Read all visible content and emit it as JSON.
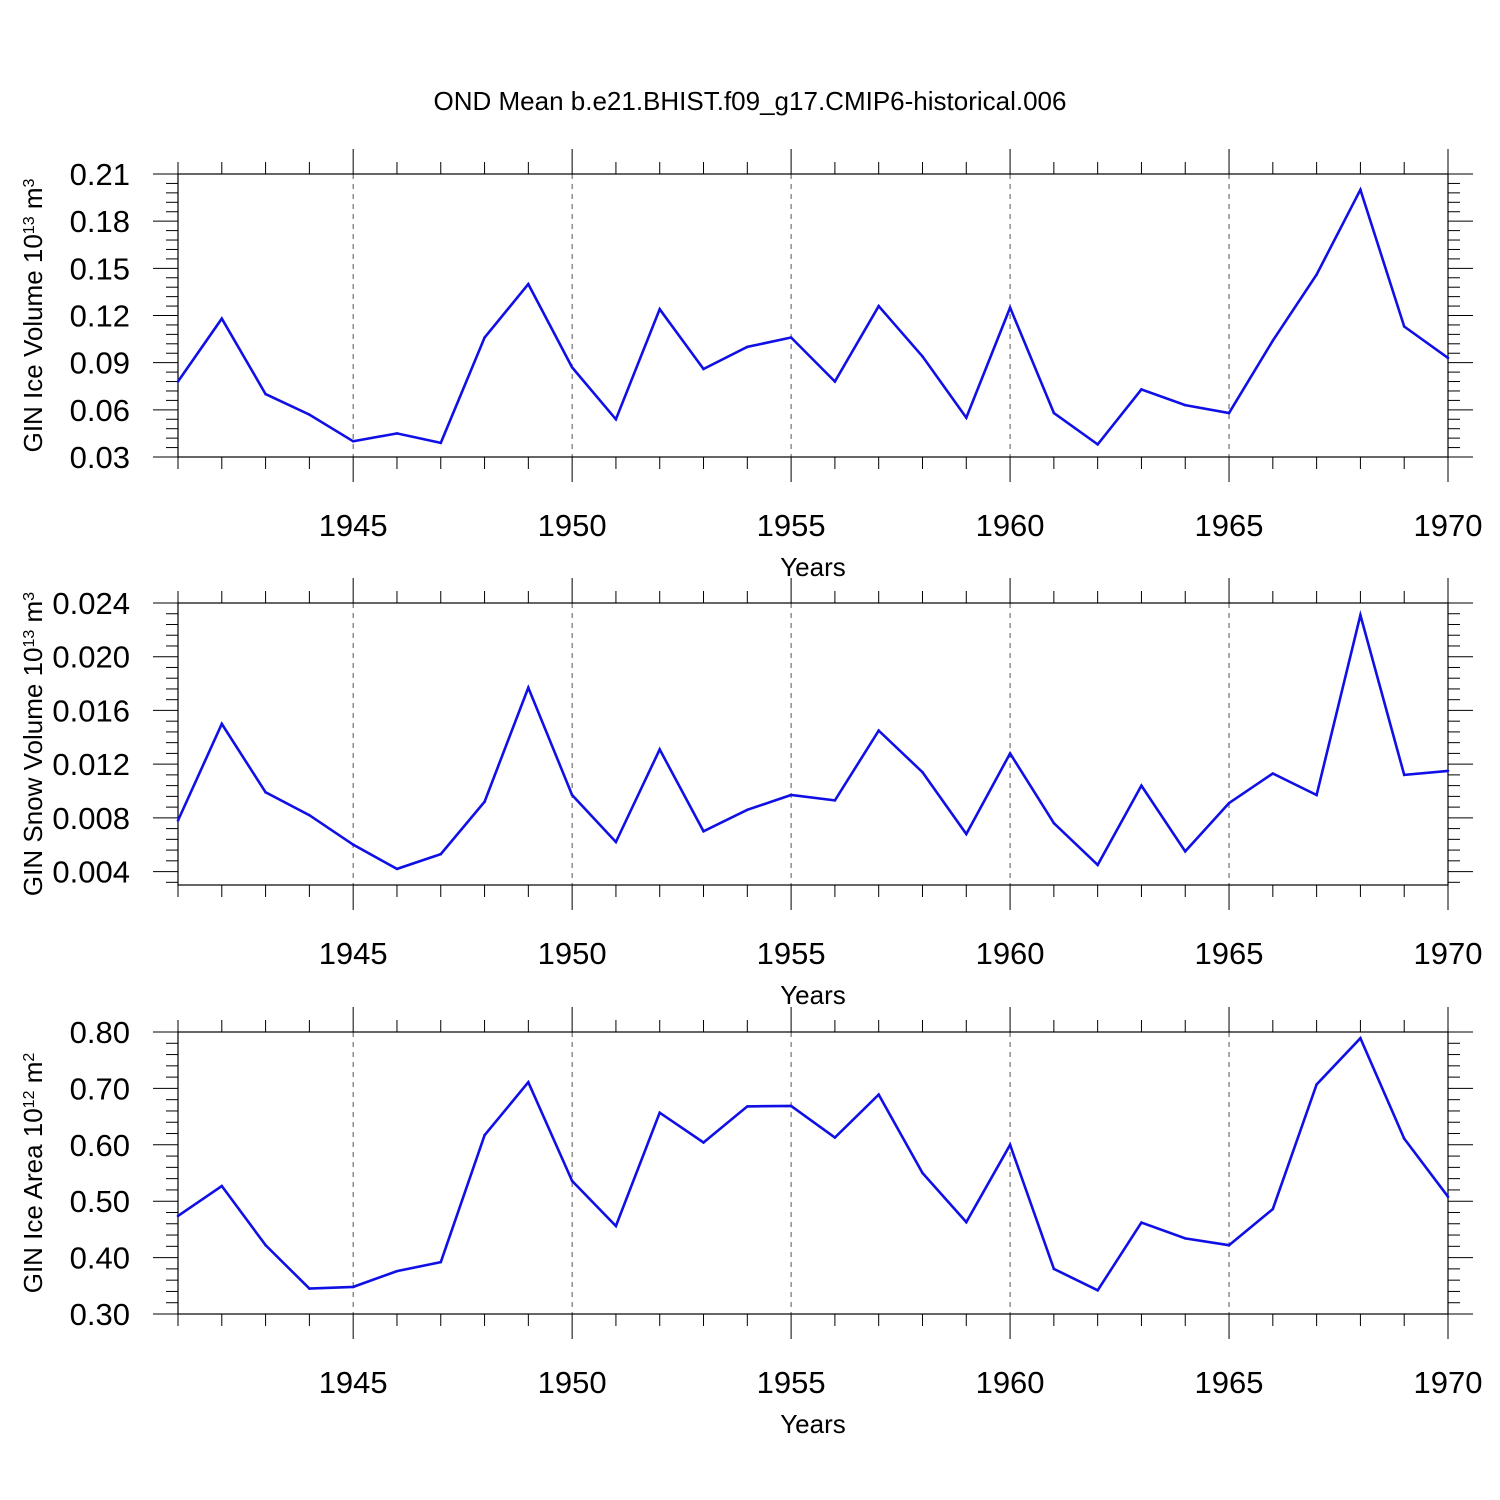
{
  "title": "OND Mean b.e21.BHIST.f09_g17.CMIP6-historical.006",
  "line_color": "#1010e6",
  "chart_data": [
    {
      "type": "line",
      "ylabel_prefix": "GIN Ice Volume 10",
      "ylabel_exp": "13",
      "ylabel_unit": " m",
      "ylabel_unit_exp": "3",
      "xlabel": "Years",
      "xlim": [
        1941,
        1970
      ],
      "ylim": [
        0.03,
        0.21
      ],
      "yticks": [
        "0.03",
        "0.06",
        "0.09",
        "0.12",
        "0.15",
        "0.18",
        "0.21"
      ],
      "xticks": [
        "1945",
        "1950",
        "1955",
        "1960",
        "1965",
        "1970"
      ],
      "x": [
        1941,
        1942,
        1943,
        1944,
        1945,
        1946,
        1947,
        1948,
        1949,
        1950,
        1951,
        1952,
        1953,
        1954,
        1955,
        1956,
        1957,
        1958,
        1959,
        1960,
        1961,
        1962,
        1963,
        1964,
        1965,
        1966,
        1967,
        1968,
        1969,
        1970
      ],
      "values": [
        0.078,
        0.118,
        0.07,
        0.057,
        0.04,
        0.045,
        0.039,
        0.106,
        0.14,
        0.087,
        0.054,
        0.124,
        0.086,
        0.1,
        0.106,
        0.078,
        0.126,
        0.094,
        0.055,
        0.125,
        0.058,
        0.038,
        0.073,
        0.063,
        0.058,
        0.104,
        0.146,
        0.2,
        0.113,
        0.093
      ]
    },
    {
      "type": "line",
      "ylabel_prefix": "GIN Snow Volume 10",
      "ylabel_exp": "13",
      "ylabel_unit": " m",
      "ylabel_unit_exp": "3",
      "xlabel": "Years",
      "xlim": [
        1941,
        1970
      ],
      "ylim": [
        0.003,
        0.024
      ],
      "yticks": [
        "0.004",
        "0.008",
        "0.012",
        "0.016",
        "0.020",
        "0.024"
      ],
      "xticks": [
        "1945",
        "1950",
        "1955",
        "1960",
        "1965",
        "1970"
      ],
      "x": [
        1941,
        1942,
        1943,
        1944,
        1945,
        1946,
        1947,
        1948,
        1949,
        1950,
        1951,
        1952,
        1953,
        1954,
        1955,
        1956,
        1957,
        1958,
        1959,
        1960,
        1961,
        1962,
        1963,
        1964,
        1965,
        1966,
        1967,
        1968,
        1969,
        1970
      ],
      "values": [
        0.0078,
        0.015,
        0.0099,
        0.0082,
        0.006,
        0.0042,
        0.0053,
        0.0092,
        0.0177,
        0.0097,
        0.0062,
        0.0131,
        0.007,
        0.0086,
        0.0097,
        0.0093,
        0.0145,
        0.0114,
        0.0068,
        0.0128,
        0.0076,
        0.0045,
        0.0104,
        0.0055,
        0.0091,
        0.0113,
        0.0097,
        0.0231,
        0.0112,
        0.0115
      ]
    },
    {
      "type": "line",
      "ylabel_prefix": "GIN Ice Area 10",
      "ylabel_exp": "12",
      "ylabel_unit": " m",
      "ylabel_unit_exp": "2",
      "xlabel": "Years",
      "xlim": [
        1941,
        1970
      ],
      "ylim": [
        0.3,
        0.8
      ],
      "yticks": [
        "0.30",
        "0.40",
        "0.50",
        "0.60",
        "0.70",
        "0.80"
      ],
      "xticks": [
        "1945",
        "1950",
        "1955",
        "1960",
        "1965",
        "1970"
      ],
      "x": [
        1941,
        1942,
        1943,
        1944,
        1945,
        1946,
        1947,
        1948,
        1949,
        1950,
        1951,
        1952,
        1953,
        1954,
        1955,
        1956,
        1957,
        1958,
        1959,
        1960,
        1961,
        1962,
        1963,
        1964,
        1965,
        1966,
        1967,
        1968,
        1969,
        1970
      ],
      "values": [
        0.474,
        0.527,
        0.422,
        0.345,
        0.348,
        0.376,
        0.392,
        0.617,
        0.711,
        0.536,
        0.456,
        0.657,
        0.604,
        0.668,
        0.669,
        0.613,
        0.689,
        0.55,
        0.463,
        0.6,
        0.38,
        0.342,
        0.462,
        0.434,
        0.422,
        0.486,
        0.707,
        0.789,
        0.611,
        0.508
      ]
    }
  ]
}
